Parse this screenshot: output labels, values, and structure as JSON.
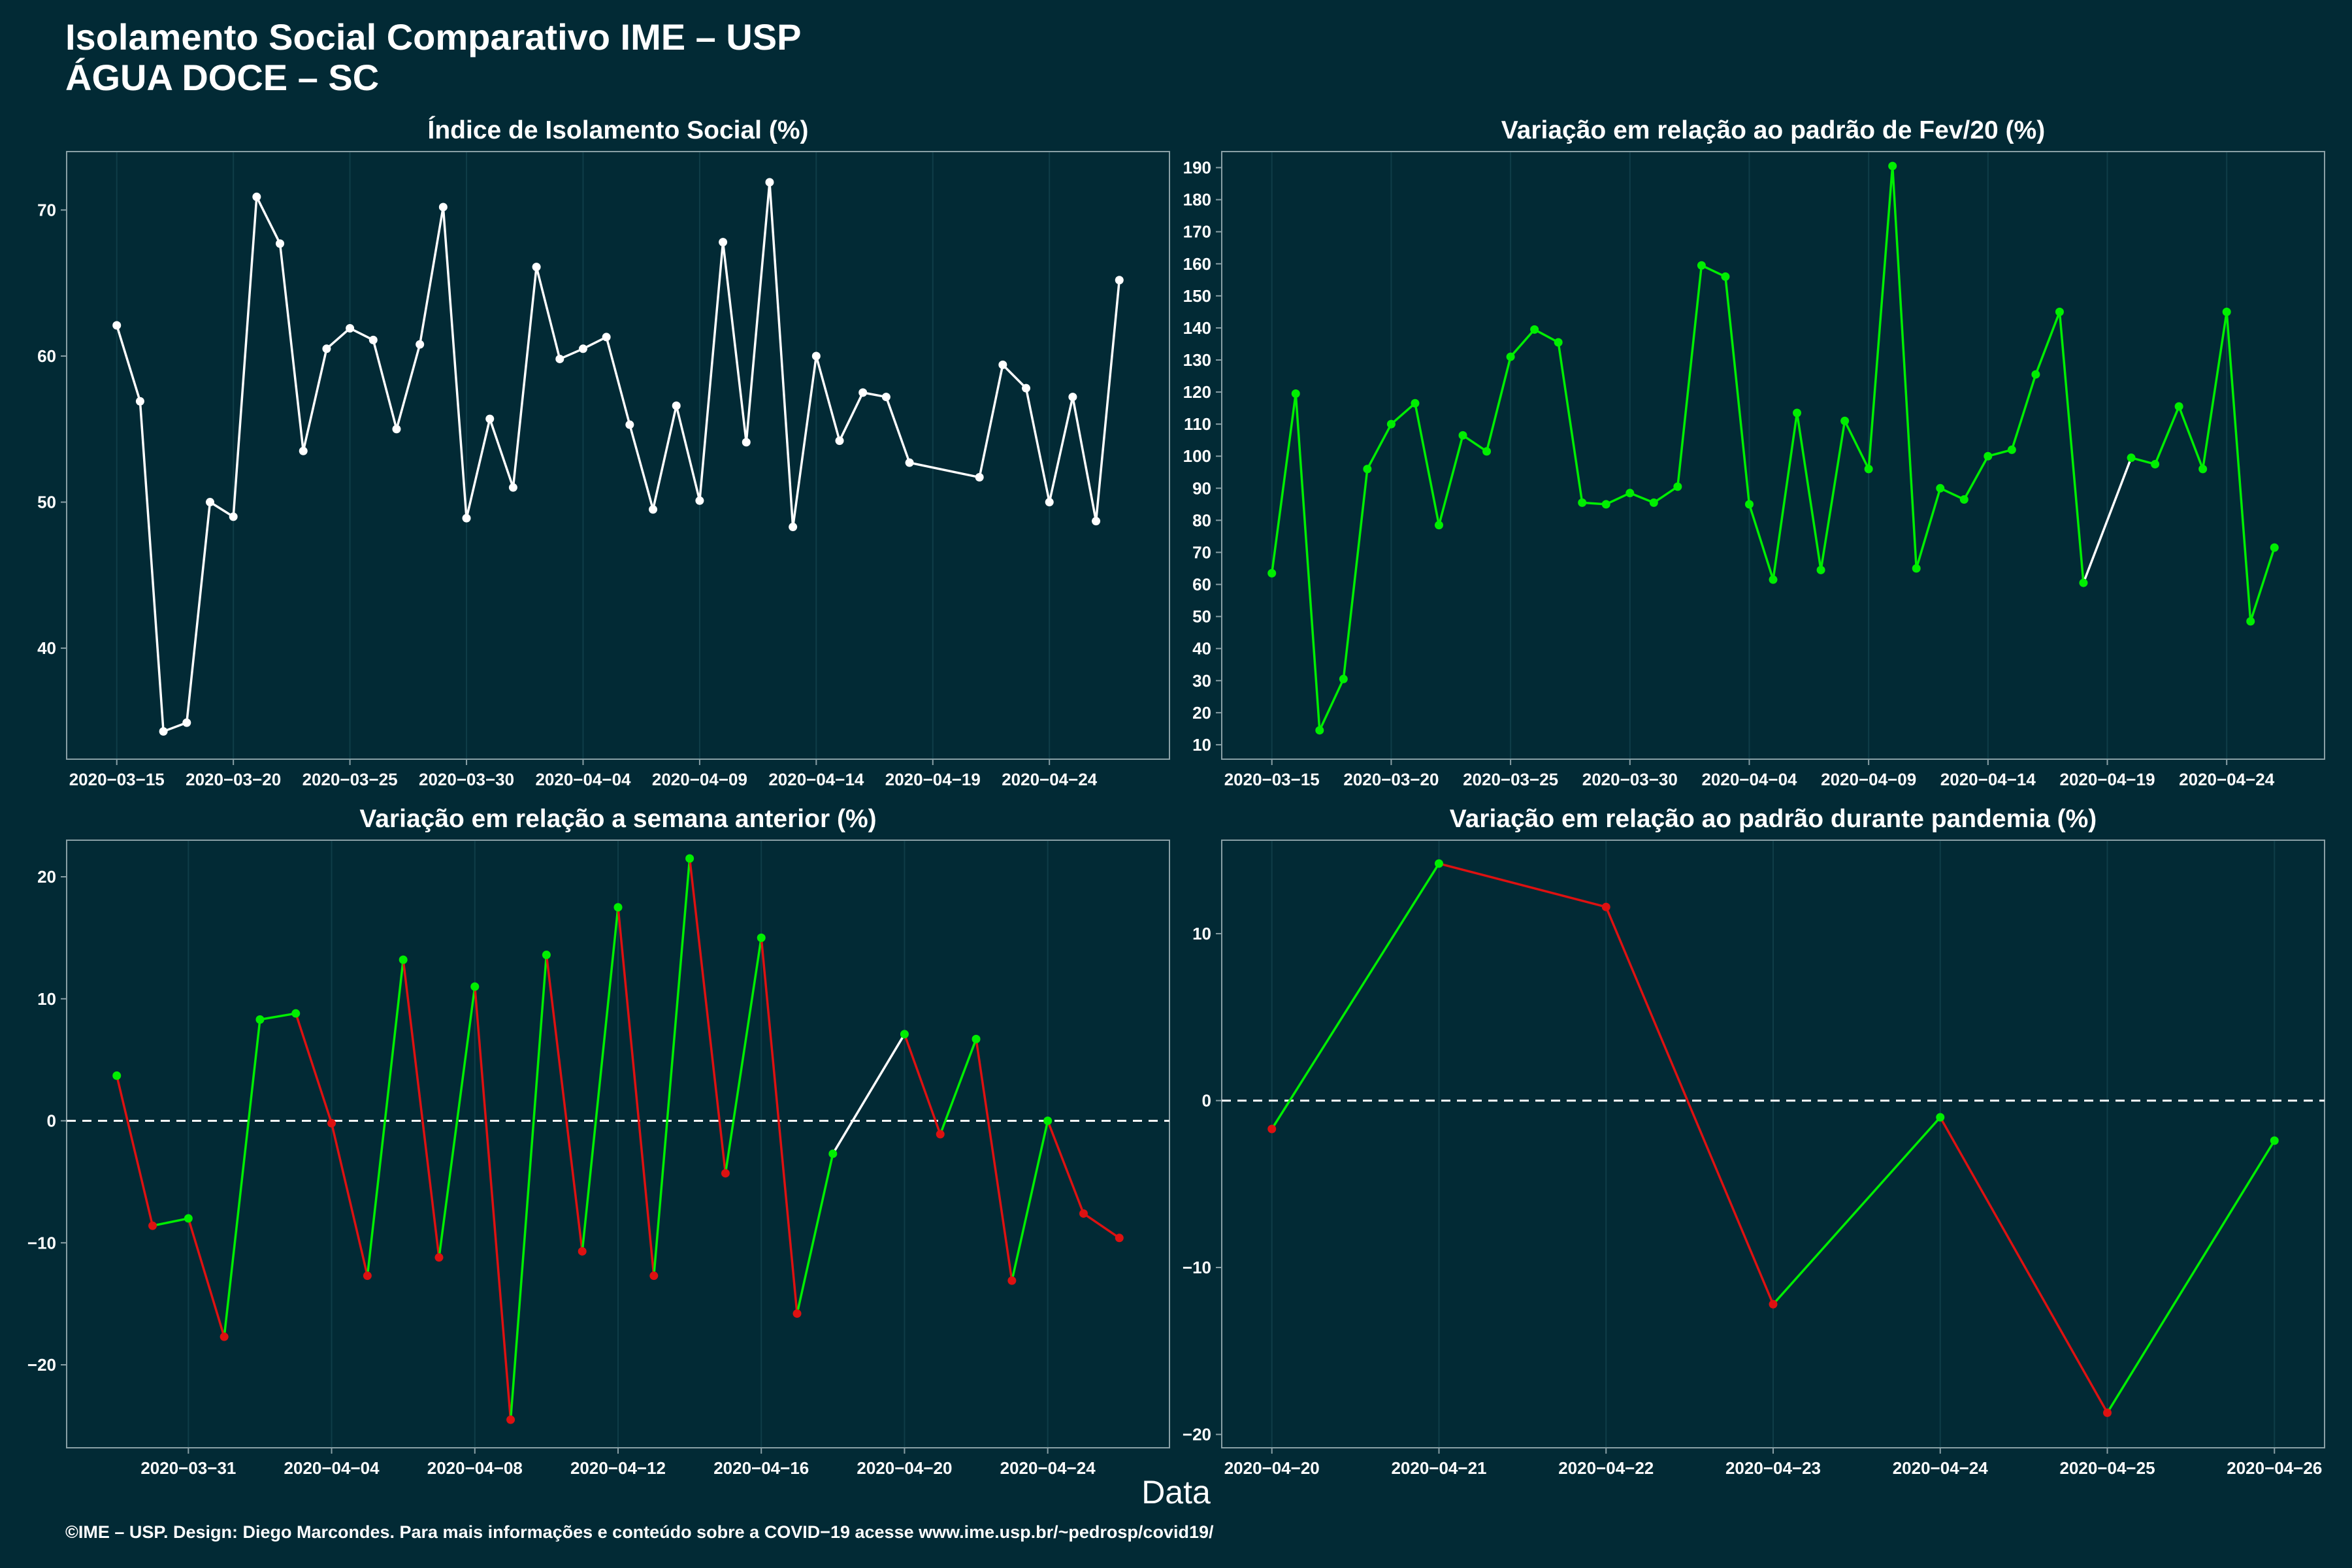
{
  "title_line1": "Isolamento Social Comparativo IME – USP",
  "title_line2": "ÁGUA DOCE – SC",
  "x_axis_label": "Data",
  "footer": "©IME – USP. Design: Diego Marcondes. Para mais informações e conteúdo sobre a COVID−19 acesse www.ime.usp.br/~pedrosp/covid19/",
  "colors": {
    "background": "#022a35",
    "white": "#ffffff",
    "green": "#00ee00",
    "red": "#dd1111",
    "grid": "#0f3d48"
  },
  "chart_data": [
    {
      "type": "line",
      "title": "Índice de Isolamento Social (%)",
      "x_ticks": [
        "2020−03−15",
        "2020−03−20",
        "2020−03−25",
        "2020−03−30",
        "2020−04−04",
        "2020−04−09",
        "2020−04−14",
        "2020−04−19",
        "2020−04−24"
      ],
      "y_ticks": [
        "40",
        "50",
        "60",
        "70"
      ],
      "ylim": [
        32.4,
        74
      ],
      "points": [
        {
          "x": "2020-03-15",
          "y": 62.1
        },
        {
          "x": "2020-03-16",
          "y": 56.9
        },
        {
          "x": "2020-03-17",
          "y": 34.3
        },
        {
          "x": "2020-03-18",
          "y": 34.9
        },
        {
          "x": "2020-03-19",
          "y": 50.0
        },
        {
          "x": "2020-03-20",
          "y": 49.0
        },
        {
          "x": "2020-03-21",
          "y": 70.9
        },
        {
          "x": "2020-03-22",
          "y": 67.7
        },
        {
          "x": "2020-03-23",
          "y": 53.5
        },
        {
          "x": "2020-03-24",
          "y": 60.5
        },
        {
          "x": "2020-03-25",
          "y": 61.9
        },
        {
          "x": "2020-03-26",
          "y": 61.1
        },
        {
          "x": "2020-03-27",
          "y": 55.0
        },
        {
          "x": "2020-03-28",
          "y": 60.8
        },
        {
          "x": "2020-03-29",
          "y": 70.2
        },
        {
          "x": "2020-03-30",
          "y": 48.9
        },
        {
          "x": "2020-03-31",
          "y": 55.7
        },
        {
          "x": "2020-04-01",
          "y": 51.0
        },
        {
          "x": "2020-04-02",
          "y": 66.1
        },
        {
          "x": "2020-04-03",
          "y": 59.8
        },
        {
          "x": "2020-04-04",
          "y": 60.5
        },
        {
          "x": "2020-04-05",
          "y": 61.3
        },
        {
          "x": "2020-04-06",
          "y": 55.3
        },
        {
          "x": "2020-04-07",
          "y": 49.5
        },
        {
          "x": "2020-04-08",
          "y": 56.6
        },
        {
          "x": "2020-04-09",
          "y": 50.1
        },
        {
          "x": "2020-04-10",
          "y": 67.8
        },
        {
          "x": "2020-04-11",
          "y": 54.1
        },
        {
          "x": "2020-04-12",
          "y": 71.9
        },
        {
          "x": "2020-04-13",
          "y": 48.3
        },
        {
          "x": "2020-04-14",
          "y": 60.0
        },
        {
          "x": "2020-04-15",
          "y": 54.2
        },
        {
          "x": "2020-04-16",
          "y": 57.5
        },
        {
          "x": "2020-04-17",
          "y": 57.2
        },
        {
          "x": "2020-04-18",
          "y": 52.7
        },
        {
          "x": "2020-04-21",
          "y": 51.7
        },
        {
          "x": "2020-04-22",
          "y": 59.4
        },
        {
          "x": "2020-04-23",
          "y": 57.8
        },
        {
          "x": "2020-04-24",
          "y": 50.0
        },
        {
          "x": "2020-04-25",
          "y": 57.2
        },
        {
          "x": "2020-04-26",
          "y": 48.7
        },
        {
          "x": "2020-04-27",
          "y": 65.2
        }
      ]
    },
    {
      "type": "line",
      "title": "Variação em relação ao padrão de Fev/20 (%)",
      "x_ticks": [
        "2020−03−15",
        "2020−03−20",
        "2020−03−25",
        "2020−03−30",
        "2020−04−04",
        "2020−04−09",
        "2020−04−14",
        "2020−04−19",
        "2020−04−24"
      ],
      "y_ticks": [
        "10",
        "20",
        "30",
        "40",
        "50",
        "60",
        "70",
        "80",
        "90",
        "100",
        "110",
        "120",
        "130",
        "140",
        "150",
        "160",
        "170",
        "180",
        "190"
      ],
      "ylim": [
        5.5,
        195
      ],
      "points": [
        {
          "x": "2020-03-15",
          "y": 63.5
        },
        {
          "x": "2020-03-16",
          "y": 119.5
        },
        {
          "x": "2020-03-17",
          "y": 14.5
        },
        {
          "x": "2020-03-18",
          "y": 30.5
        },
        {
          "x": "2020-03-19",
          "y": 96.0
        },
        {
          "x": "2020-03-20",
          "y": 110.0
        },
        {
          "x": "2020-03-21",
          "y": 116.5
        },
        {
          "x": "2020-03-22",
          "y": 78.5
        },
        {
          "x": "2020-03-23",
          "y": 106.5
        },
        {
          "x": "2020-03-24",
          "y": 101.5
        },
        {
          "x": "2020-03-25",
          "y": 131.0
        },
        {
          "x": "2020-03-26",
          "y": 139.5
        },
        {
          "x": "2020-03-27",
          "y": 135.5
        },
        {
          "x": "2020-03-28",
          "y": 85.5
        },
        {
          "x": "2020-03-29",
          "y": 85.0
        },
        {
          "x": "2020-03-30",
          "y": 88.5
        },
        {
          "x": "2020-03-31",
          "y": 85.5
        },
        {
          "x": "2020-04-01",
          "y": 90.5
        },
        {
          "x": "2020-04-02",
          "y": 159.5
        },
        {
          "x": "2020-04-03",
          "y": 156.0
        },
        {
          "x": "2020-04-04",
          "y": 85.0
        },
        {
          "x": "2020-04-05",
          "y": 61.5
        },
        {
          "x": "2020-04-06",
          "y": 113.5
        },
        {
          "x": "2020-04-07",
          "y": 64.5
        },
        {
          "x": "2020-04-08",
          "y": 111.0
        },
        {
          "x": "2020-04-09",
          "y": 96.0
        },
        {
          "x": "2020-04-10",
          "y": 190.5
        },
        {
          "x": "2020-04-11",
          "y": 65.0
        },
        {
          "x": "2020-04-12",
          "y": 90.0
        },
        {
          "x": "2020-04-13",
          "y": 86.5
        },
        {
          "x": "2020-04-14",
          "y": 100.0
        },
        {
          "x": "2020-04-15",
          "y": 102.0
        },
        {
          "x": "2020-04-16",
          "y": 125.5
        },
        {
          "x": "2020-04-17",
          "y": 145.0
        },
        {
          "x": "2020-04-18",
          "y": 60.5
        },
        {
          "x": "2020-04-20",
          "y": 99.5
        },
        {
          "x": "2020-04-21",
          "y": 97.5
        },
        {
          "x": "2020-04-22",
          "y": 115.5
        },
        {
          "x": "2020-04-23",
          "y": 96.0
        },
        {
          "x": "2020-04-24",
          "y": 145.0
        },
        {
          "x": "2020-04-25",
          "y": 48.5
        },
        {
          "x": "2020-04-26",
          "y": 71.5
        }
      ]
    },
    {
      "type": "line",
      "title": "Variação em relação a semana anterior (%)",
      "x_ticks": [
        "2020−03−31",
        "2020−04−04",
        "2020−04−08",
        "2020−04−12",
        "2020−04−16",
        "2020−04−20",
        "2020−04−24"
      ],
      "y_ticks": [
        "−20",
        "−10",
        "0",
        "10",
        "20"
      ],
      "ylim": [
        -26.8,
        23
      ],
      "reference_line": 0,
      "points": [
        {
          "x": "2020-03-29",
          "y": 3.7
        },
        {
          "x": "2020-03-30",
          "y": -8.6
        },
        {
          "x": "2020-03-31",
          "y": -8.0
        },
        {
          "x": "2020-04-01",
          "y": -17.7
        },
        {
          "x": "2020-04-02",
          "y": 8.3
        },
        {
          "x": "2020-04-03",
          "y": 8.8
        },
        {
          "x": "2020-04-04",
          "y": -0.2
        },
        {
          "x": "2020-04-05",
          "y": -12.7
        },
        {
          "x": "2020-04-06",
          "y": 13.2
        },
        {
          "x": "2020-04-07",
          "y": -11.2
        },
        {
          "x": "2020-04-08",
          "y": 11.0
        },
        {
          "x": "2020-04-09",
          "y": -24.5
        },
        {
          "x": "2020-04-10",
          "y": 13.6
        },
        {
          "x": "2020-04-11",
          "y": -10.7
        },
        {
          "x": "2020-04-12",
          "y": 17.5
        },
        {
          "x": "2020-04-13",
          "y": -12.7
        },
        {
          "x": "2020-04-14",
          "y": 21.5
        },
        {
          "x": "2020-04-15",
          "y": -4.3
        },
        {
          "x": "2020-04-16",
          "y": 15.0
        },
        {
          "x": "2020-04-17",
          "y": -15.8
        },
        {
          "x": "2020-04-18",
          "y": -2.7
        },
        {
          "x": "2020-04-20",
          "y": 7.1
        },
        {
          "x": "2020-04-21",
          "y": -1.1
        },
        {
          "x": "2020-04-22",
          "y": 6.7
        },
        {
          "x": "2020-04-23",
          "y": -13.1
        },
        {
          "x": "2020-04-24",
          "y": 0.0
        },
        {
          "x": "2020-04-25",
          "y": -7.6
        },
        {
          "x": "2020-04-26",
          "y": -9.6
        }
      ]
    },
    {
      "type": "line",
      "title": "Variação em relação ao padrão durante pandemia (%)",
      "x_ticks": [
        "2020−04−20",
        "2020−04−21",
        "2020−04−22",
        "2020−04−23",
        "2020−04−24",
        "2020−04−25",
        "2020−04−26"
      ],
      "y_ticks": [
        "−20",
        "−10",
        "0",
        "10"
      ],
      "ylim": [
        -20.8,
        15.6
      ],
      "reference_line": 0,
      "points": [
        {
          "x": "2020-04-20",
          "y": -1.7
        },
        {
          "x": "2020-04-21",
          "y": 14.2
        },
        {
          "x": "2020-04-22",
          "y": 11.6
        },
        {
          "x": "2020-04-23",
          "y": -12.2
        },
        {
          "x": "2020-04-24",
          "y": -1.0
        },
        {
          "x": "2020-04-25",
          "y": -18.7
        },
        {
          "x": "2020-04-26",
          "y": -2.4
        }
      ]
    }
  ]
}
